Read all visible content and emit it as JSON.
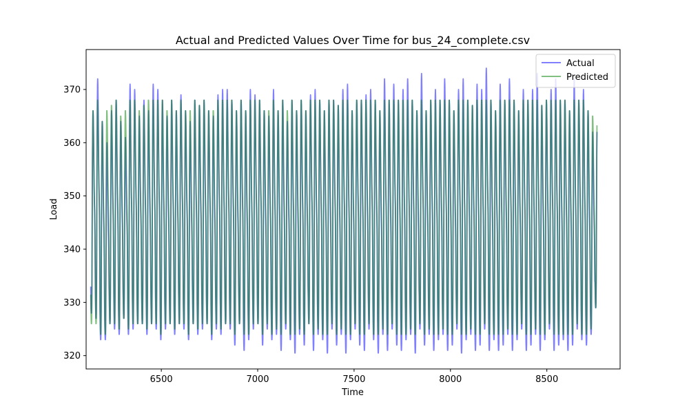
{
  "chart_data": {
    "type": "line",
    "title": "Actual and Predicted Values Over Time for bus_24_complete.csv",
    "xlabel": "Time",
    "ylabel": "Load",
    "xlim": [
      6110,
      8880
    ],
    "ylim": [
      317.5,
      377.5
    ],
    "xticks": [
      6500,
      7000,
      7500,
      8000,
      8500
    ],
    "yticks": [
      320,
      330,
      340,
      350,
      360,
      370
    ],
    "grid": false,
    "legend_position": "top-right",
    "period": 24,
    "series": [
      {
        "name": "Actual",
        "color": "#0000ff",
        "opacity": 0.5,
        "start": 6134,
        "end": 8760,
        "daily_profile": [
          333,
          330.5,
          328.5,
          327.5,
          327.5,
          328.5,
          333,
          342,
          352,
          360,
          365,
          368.5,
          369.5,
          368.5,
          366,
          362.5,
          358.5,
          355,
          352.5,
          350.5,
          349,
          347,
          343.5,
          338.5
        ],
        "daily_peaks": [
          366,
          372,
          364,
          360,
          366,
          368,
          364,
          361,
          371,
          370,
          365,
          368,
          366,
          371,
          370,
          368,
          365,
          368,
          366,
          369,
          366,
          364,
          368,
          367,
          368,
          366,
          365,
          369,
          370,
          370,
          368,
          366,
          368,
          366,
          370,
          369,
          368,
          366,
          365,
          370,
          366,
          368,
          364,
          368,
          366,
          368,
          366,
          369,
          370,
          368,
          366,
          368,
          368,
          367,
          370,
          371,
          366,
          368,
          368,
          369,
          370,
          368,
          366,
          372,
          368,
          371,
          368,
          370,
          372,
          368,
          366,
          373,
          366,
          368,
          370,
          368,
          372,
          368,
          366,
          370,
          372,
          368,
          367,
          371,
          370,
          374,
          368,
          366,
          371,
          368,
          372,
          368,
          366,
          370,
          368,
          370,
          373,
          367,
          368,
          370,
          372,
          368,
          368,
          366,
          372,
          368,
          370,
          366,
          362,
          366
        ],
        "daily_troughs": [
          328,
          327,
          323,
          323,
          326,
          325,
          324,
          327,
          324,
          325,
          326,
          326,
          324,
          326,
          325,
          323,
          325,
          326,
          324,
          326,
          325,
          323,
          326,
          324,
          325,
          326,
          323,
          325,
          324,
          326,
          325,
          322,
          326,
          321,
          323,
          325,
          326,
          322,
          325,
          323,
          324,
          321,
          325,
          323,
          320.5,
          324,
          322,
          326,
          321,
          324,
          323,
          320.5,
          325,
          322,
          324,
          320.5,
          323,
          325,
          322,
          321,
          325,
          323,
          320.5,
          324,
          321,
          325,
          322,
          321,
          323,
          324,
          320.5,
          325,
          322,
          324,
          321,
          323,
          324,
          321,
          322,
          325,
          320.5,
          323,
          324,
          321,
          322,
          325,
          321,
          323,
          321,
          322,
          324,
          321,
          323,
          325,
          321,
          322,
          324,
          321,
          323,
          325,
          321,
          322,
          323,
          321,
          322,
          325,
          323,
          322,
          324,
          329
        ]
      },
      {
        "name": "Predicted",
        "color": "#008000",
        "opacity": 0.5,
        "start": 6134,
        "end": 8760,
        "daily_profile": [
          333,
          330.5,
          328.5,
          327.5,
          327.5,
          328.5,
          333,
          342,
          352,
          360,
          365,
          368,
          368,
          367,
          365,
          362,
          358.5,
          355.5,
          353,
          351,
          349.5,
          347.5,
          344,
          339
        ],
        "daily_peaks": [
          366,
          368,
          364,
          366,
          367,
          368,
          365,
          366,
          368,
          368,
          366,
          367,
          368,
          368,
          368,
          368,
          366,
          368,
          366,
          368,
          366,
          366,
          368,
          367,
          368,
          366,
          366,
          368,
          368,
          368,
          368,
          366,
          368,
          366,
          368,
          368,
          368,
          366,
          366,
          368,
          366,
          368,
          366,
          368,
          366,
          368,
          366,
          368,
          368,
          368,
          366,
          368,
          368,
          367,
          368,
          368,
          366,
          368,
          368,
          368,
          368,
          368,
          366,
          368,
          368,
          368,
          368,
          368,
          368,
          368,
          366,
          368,
          366,
          368,
          368,
          368,
          368,
          368,
          366,
          368,
          368,
          368,
          367,
          368,
          368,
          368,
          368,
          366,
          368,
          368,
          368,
          368,
          366,
          368,
          368,
          368,
          368,
          367,
          368,
          368,
          368,
          368,
          368,
          366,
          368,
          368,
          368,
          366,
          365,
          366
        ],
        "daily_troughs": [
          326,
          326,
          324,
          324,
          326,
          326,
          325,
          327,
          325,
          326,
          326,
          326,
          325,
          326,
          326,
          324,
          326,
          326,
          325,
          326,
          326,
          324,
          326,
          325,
          326,
          326,
          324,
          326,
          325,
          326,
          326,
          324,
          326,
          324,
          324,
          326,
          326,
          324,
          326,
          324,
          325,
          324,
          326,
          324,
          324,
          325,
          324,
          326,
          324,
          325,
          324,
          324,
          326,
          324,
          325,
          324,
          324,
          326,
          324,
          324,
          326,
          324,
          324,
          325,
          324,
          326,
          324,
          324,
          324,
          325,
          324,
          326,
          324,
          325,
          324,
          324,
          325,
          324,
          324,
          326,
          324,
          324,
          325,
          324,
          324,
          326,
          324,
          324,
          324,
          324,
          325,
          324,
          324,
          326,
          324,
          324,
          325,
          324,
          324,
          326,
          324,
          324,
          324,
          324,
          324,
          326,
          324,
          324,
          325,
          329
        ]
      }
    ]
  }
}
